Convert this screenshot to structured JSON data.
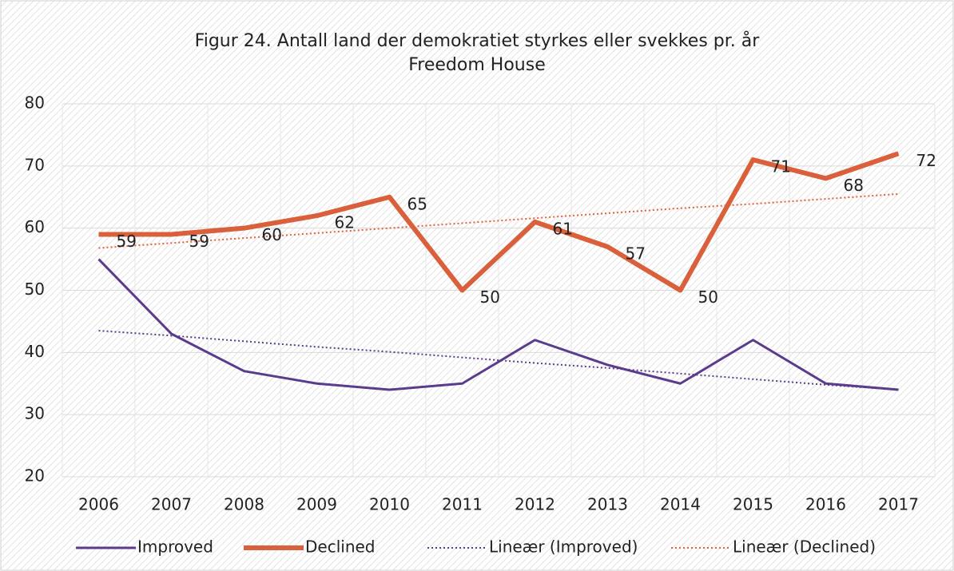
{
  "chart_data": {
    "type": "line",
    "title": "Figur 24. Antall land der demokratiet styrkes eller svekkes pr. år",
    "subtitle": "Freedom House",
    "categories": [
      "2006",
      "2007",
      "2008",
      "2009",
      "2010",
      "2011",
      "2012",
      "2013",
      "2014",
      "2015",
      "2016",
      "2017"
    ],
    "series": [
      {
        "name": "Improved",
        "color": "#5b3b8c",
        "width": 3,
        "dash": false,
        "labels": false,
        "values": [
          55,
          43,
          37,
          35,
          34,
          35,
          42,
          38,
          35,
          42,
          35,
          34
        ]
      },
      {
        "name": "Declined",
        "color": "#d9603b",
        "width": 6,
        "dash": false,
        "labels": true,
        "values": [
          59,
          59,
          60,
          62,
          65,
          50,
          61,
          57,
          50,
          71,
          68,
          72
        ]
      },
      {
        "name": "Lineær (Improved)",
        "color": "#5b3b8c",
        "width": 2,
        "dash": true,
        "labels": false,
        "values": [
          43.5,
          42.7,
          41.8,
          40.9,
          40.1,
          39.2,
          38.3,
          37.5,
          36.6,
          35.7,
          34.8,
          34.0
        ]
      },
      {
        "name": "Lineær (Declined)",
        "color": "#e2603b",
        "width": 2,
        "dash": true,
        "labels": false,
        "values": [
          56.8,
          57.6,
          58.4,
          59.2,
          60.0,
          60.8,
          61.6,
          62.4,
          63.2,
          63.9,
          64.7,
          65.5
        ]
      }
    ],
    "ylim": [
      20,
      80
    ],
    "yticks": [
      20,
      30,
      40,
      50,
      60,
      70,
      80
    ],
    "grid": true,
    "legend": "bottom"
  }
}
